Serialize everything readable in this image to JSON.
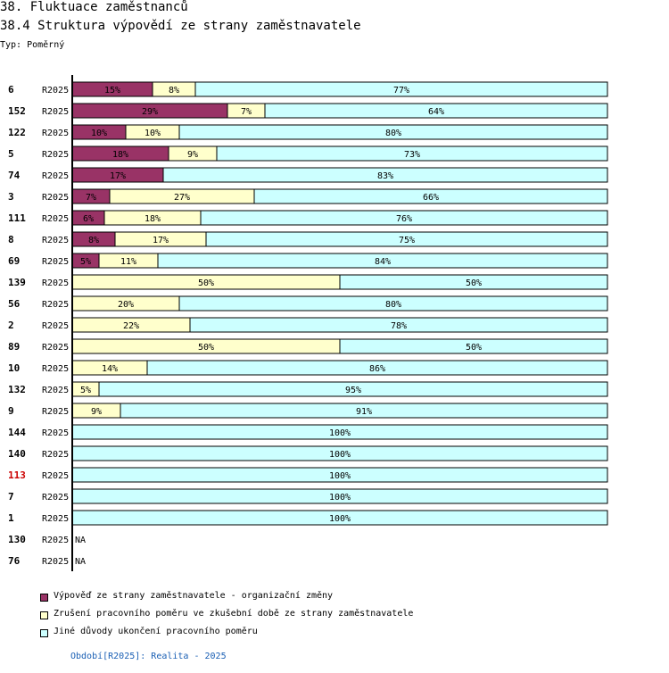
{
  "page": {
    "title": "38. Fluktuace zaměstnanců",
    "subtitle": "38.4 Struktura výpovědí ze strany zaměstnavatele",
    "type_label": "Typ: Poměrný",
    "footer": "Období[R2025]: Realita - 2025"
  },
  "colors": {
    "series1": "#993366",
    "series2": "#ffffcc",
    "series3": "#ccffff",
    "highlight_label": "#cc0000"
  },
  "chart_data": {
    "type": "bar",
    "orientation": "horizontal",
    "stacked": true,
    "percent_scale": true,
    "title": "38.4 Struktura výpovědí ze strany zaměstnavatele",
    "xlim": [
      0,
      100
    ],
    "series": [
      {
        "name": "Výpověď ze strany zaměstnavatele - organizační změny",
        "color": "#993366"
      },
      {
        "name": "Zrušení pracovního poměru ve zkušební době ze strany zaměstnavatele",
        "color": "#ffffcc"
      },
      {
        "name": "Jiné důvody ukončení pracovního poměru",
        "color": "#ccffff"
      }
    ],
    "rows": [
      {
        "id": "6",
        "period": "R2025",
        "values": [
          15,
          8,
          77
        ]
      },
      {
        "id": "152",
        "period": "R2025",
        "values": [
          29,
          7,
          64
        ]
      },
      {
        "id": "122",
        "period": "R2025",
        "values": [
          10,
          10,
          80
        ]
      },
      {
        "id": "5",
        "period": "R2025",
        "values": [
          18,
          9,
          73
        ]
      },
      {
        "id": "74",
        "period": "R2025",
        "values": [
          17,
          0,
          83
        ]
      },
      {
        "id": "3",
        "period": "R2025",
        "values": [
          7,
          27,
          66
        ]
      },
      {
        "id": "111",
        "period": "R2025",
        "values": [
          6,
          18,
          76
        ]
      },
      {
        "id": "8",
        "period": "R2025",
        "values": [
          8,
          17,
          75
        ]
      },
      {
        "id": "69",
        "period": "R2025",
        "values": [
          5,
          11,
          84
        ]
      },
      {
        "id": "139",
        "period": "R2025",
        "values": [
          0,
          50,
          50
        ]
      },
      {
        "id": "56",
        "period": "R2025",
        "values": [
          0,
          20,
          80
        ]
      },
      {
        "id": "2",
        "period": "R2025",
        "values": [
          0,
          22,
          78
        ]
      },
      {
        "id": "89",
        "period": "R2025",
        "values": [
          0,
          50,
          50
        ]
      },
      {
        "id": "10",
        "period": "R2025",
        "values": [
          0,
          14,
          86
        ]
      },
      {
        "id": "132",
        "period": "R2025",
        "values": [
          0,
          5,
          95
        ]
      },
      {
        "id": "9",
        "period": "R2025",
        "values": [
          0,
          9,
          91
        ]
      },
      {
        "id": "144",
        "period": "R2025",
        "values": [
          0,
          0,
          100
        ]
      },
      {
        "id": "140",
        "period": "R2025",
        "values": [
          0,
          0,
          100
        ]
      },
      {
        "id": "113",
        "period": "R2025",
        "values": [
          0,
          0,
          100
        ],
        "highlight": true
      },
      {
        "id": "7",
        "period": "R2025",
        "values": [
          0,
          0,
          100
        ]
      },
      {
        "id": "1",
        "period": "R2025",
        "values": [
          0,
          0,
          100
        ]
      },
      {
        "id": "130",
        "period": "R2025",
        "values": null,
        "na_label": "NA"
      },
      {
        "id": "76",
        "period": "R2025",
        "values": null,
        "na_label": "NA"
      }
    ]
  }
}
